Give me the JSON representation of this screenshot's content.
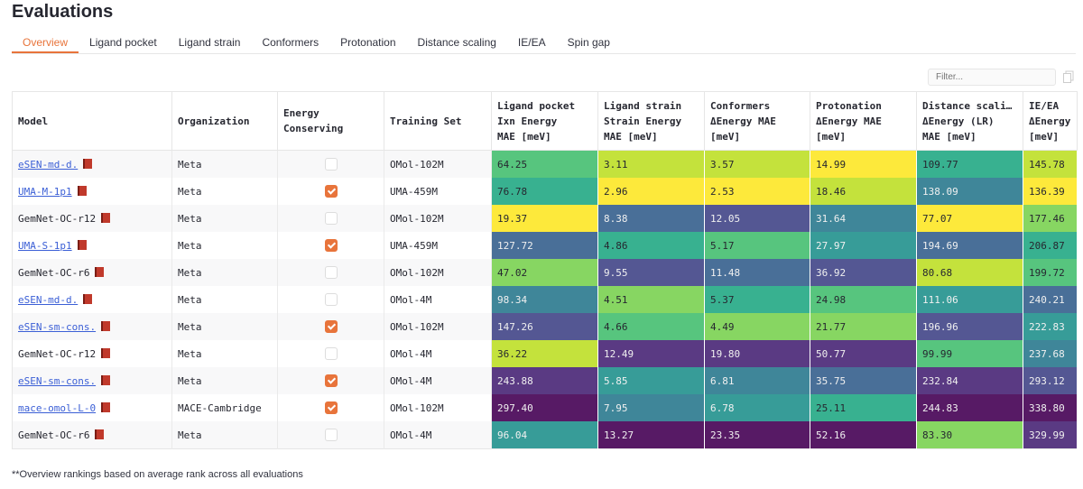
{
  "page": {
    "title": "Evaluations",
    "footer": "**Overview rankings based on average rank across all evaluations"
  },
  "tabs": [
    "Overview",
    "Ligand pocket",
    "Ligand strain",
    "Conformers",
    "Protonation",
    "Distance scaling",
    "IE/EA",
    "Spin gap"
  ],
  "active_tab": "Overview",
  "filter": {
    "placeholder": "Filter..."
  },
  "colorscale": {
    "best": "#fde725",
    "worst": "#440154",
    "name": "viridis"
  },
  "accent_color": "#e8743b",
  "table": {
    "columns": [
      "Model",
      "Organization",
      "Energy\nConserving",
      "Training Set",
      "Ligand pocket\nIxn Energy\nMAE [meV]",
      "Ligand strain\nStrain Energy\nMAE [meV]",
      "Conformers\nΔEnergy MAE\n[meV]",
      "Protonation\nΔEnergy MAE\n[meV]",
      "Distance scali…\nΔEnergy (LR)\n MAE [meV]",
      "IE/EA\nΔEnergy\n[meV]"
    ],
    "rows": [
      {
        "model": "eSEN-md-d.",
        "link": true,
        "org": "Meta",
        "conserving": false,
        "training": "OMol-102M",
        "values": [
          "64.25",
          "3.11",
          "3.57",
          "14.99",
          "109.77",
          "145.78"
        ]
      },
      {
        "model": "UMA-M-1p1",
        "link": true,
        "org": "Meta",
        "conserving": true,
        "training": "UMA-459M",
        "values": [
          "76.78",
          "2.96",
          "2.53",
          "18.46",
          "138.09",
          "136.39"
        ]
      },
      {
        "model": "GemNet-OC-r12",
        "link": false,
        "org": "Meta",
        "conserving": false,
        "training": "OMol-102M",
        "values": [
          "19.37",
          "8.38",
          "12.05",
          "31.64",
          "77.07",
          "177.46"
        ]
      },
      {
        "model": "UMA-S-1p1",
        "link": true,
        "org": "Meta",
        "conserving": true,
        "training": "UMA-459M",
        "values": [
          "127.72",
          "4.86",
          "5.17",
          "27.97",
          "194.69",
          "206.87"
        ]
      },
      {
        "model": "GemNet-OC-r6",
        "link": false,
        "org": "Meta",
        "conserving": false,
        "training": "OMol-102M",
        "values": [
          "47.02",
          "9.55",
          "11.48",
          "36.92",
          "80.68",
          "199.72"
        ]
      },
      {
        "model": "eSEN-md-d.",
        "link": true,
        "org": "Meta",
        "conserving": false,
        "training": "OMol-4M",
        "values": [
          "98.34",
          "4.51",
          "5.37",
          "24.98",
          "111.06",
          "240.21"
        ]
      },
      {
        "model": "eSEN-sm-cons.",
        "link": true,
        "org": "Meta",
        "conserving": true,
        "training": "OMol-102M",
        "values": [
          "147.26",
          "4.66",
          "4.49",
          "21.77",
          "196.96",
          "222.83"
        ]
      },
      {
        "model": "GemNet-OC-r12",
        "link": false,
        "org": "Meta",
        "conserving": false,
        "training": "OMol-4M",
        "values": [
          "36.22",
          "12.49",
          "19.80",
          "50.77",
          "99.99",
          "237.68"
        ]
      },
      {
        "model": "eSEN-sm-cons.",
        "link": true,
        "org": "Meta",
        "conserving": true,
        "training": "OMol-4M",
        "values": [
          "243.88",
          "5.85",
          "6.81",
          "35.75",
          "232.84",
          "293.12"
        ]
      },
      {
        "model": "mace-omol-L-0",
        "link": true,
        "org": "MACE-Cambridge",
        "conserving": true,
        "training": "OMol-102M",
        "values": [
          "297.40",
          "7.95",
          "6.78",
          "25.11",
          "244.83",
          "338.80"
        ]
      },
      {
        "model": "GemNet-OC-r6",
        "link": false,
        "org": "Meta",
        "conserving": false,
        "training": "OMol-4M",
        "values": [
          "96.04",
          "13.27",
          "23.35",
          "52.16",
          "83.30",
          "329.99"
        ]
      }
    ]
  }
}
